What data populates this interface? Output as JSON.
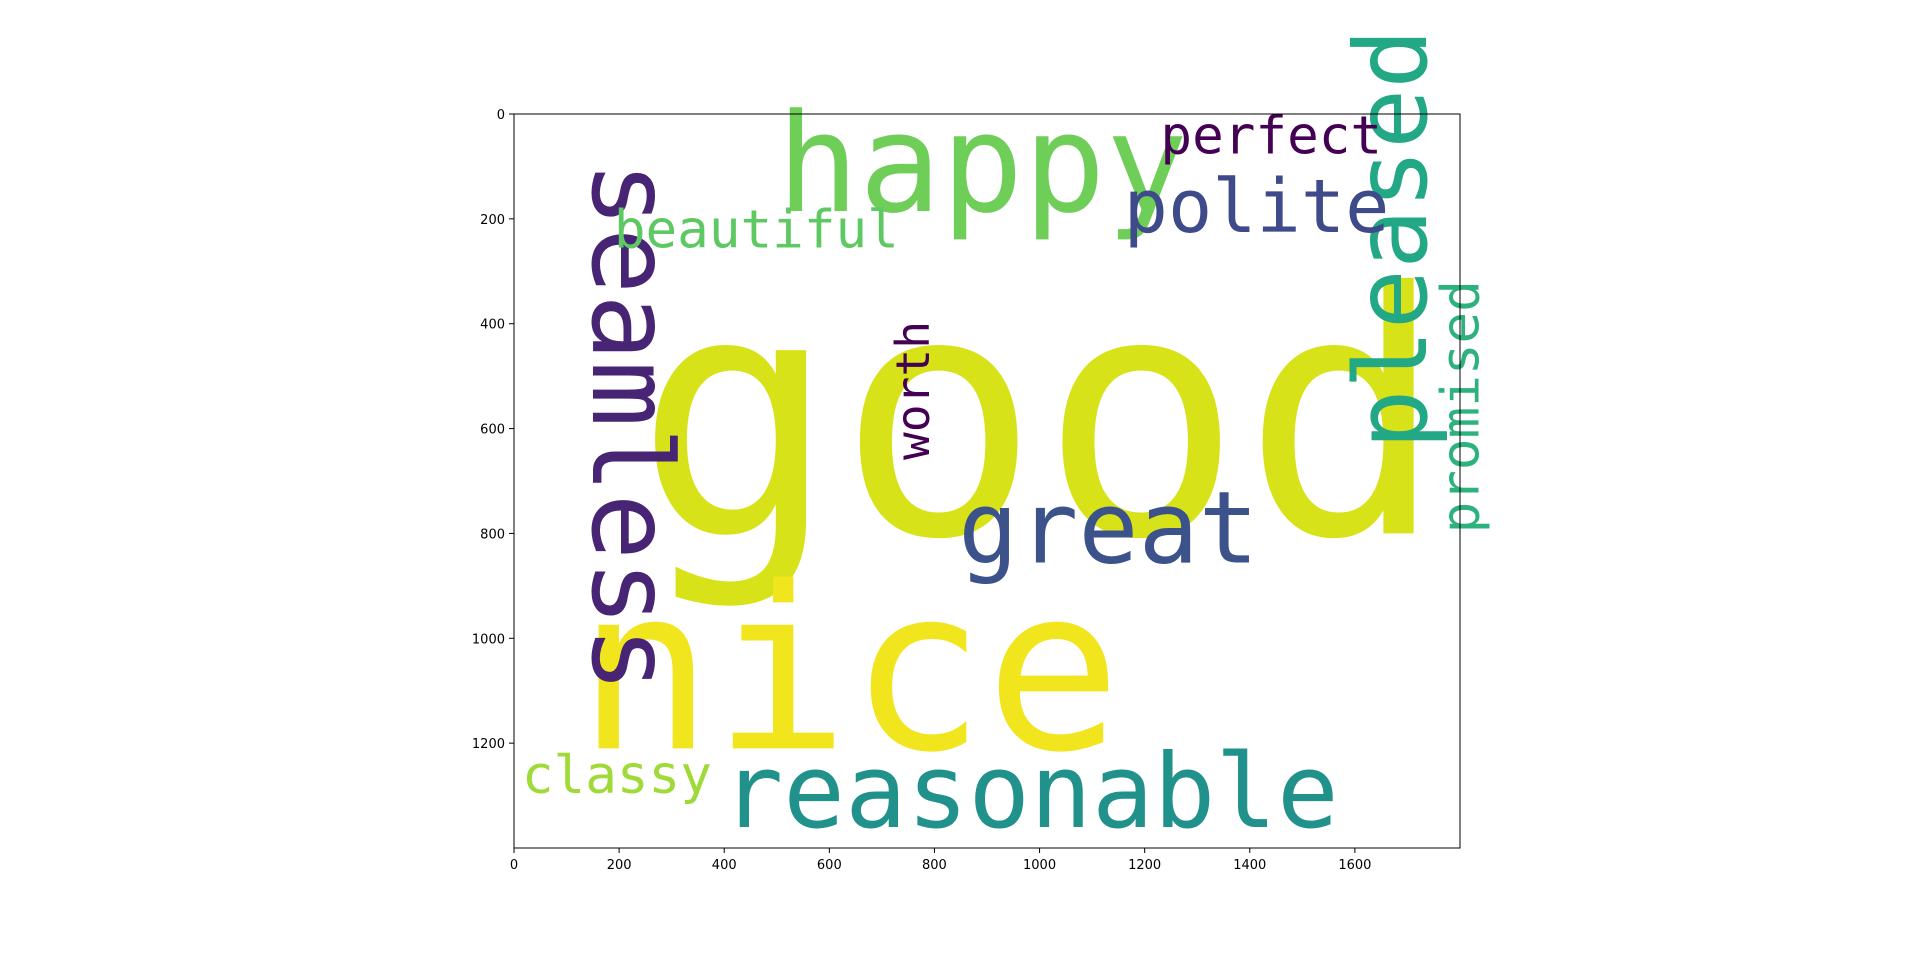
{
  "chart_data": {
    "type": "wordcloud",
    "xlim": [
      0,
      1800
    ],
    "ylim": [
      1400,
      0
    ],
    "x_ticks": [
      "0",
      "200",
      "400",
      "600",
      "800",
      "1000",
      "1200",
      "1400",
      "1600"
    ],
    "y_ticks": [
      "0",
      "200",
      "400",
      "600",
      "800",
      "1000",
      "1200"
    ],
    "grid": false,
    "words": [
      {
        "text": "good",
        "x": 230,
        "y": 800,
        "size": 640,
        "rotation": 0,
        "color": "#d8e219"
      },
      {
        "text": "nice",
        "x": 120,
        "y": 1210,
        "size": 430,
        "rotation": 0,
        "color": "#f1e51d"
      },
      {
        "text": "happy",
        "x": 500,
        "y": 185,
        "size": 260,
        "rotation": 0,
        "color": "#6ece58"
      },
      {
        "text": "seamless",
        "x": 150,
        "y": 90,
        "size": 210,
        "rotation": 90,
        "color": "#482475"
      },
      {
        "text": "great",
        "x": 845,
        "y": 855,
        "size": 190,
        "rotation": 0,
        "color": "#3b528b"
      },
      {
        "text": "reasonable",
        "x": 395,
        "y": 1360,
        "size": 195,
        "rotation": 0,
        "color": "#21918c"
      },
      {
        "text": "pleased",
        "x": 1735,
        "y": 640,
        "size": 190,
        "rotation": -90,
        "color": "#22a884"
      },
      {
        "text": "polite",
        "x": 1160,
        "y": 225,
        "size": 140,
        "rotation": 0,
        "color": "#3e4a89"
      },
      {
        "text": "perfect",
        "x": 1230,
        "y": 75,
        "size": 100,
        "rotation": 0,
        "color": "#440154"
      },
      {
        "text": "beautiful",
        "x": 190,
        "y": 255,
        "size": 100,
        "rotation": 0,
        "color": "#5ec962"
      },
      {
        "text": "worth",
        "x": 790,
        "y": 660,
        "size": 88,
        "rotation": -90,
        "color": "#440154"
      },
      {
        "text": "promised",
        "x": 1835,
        "y": 800,
        "size": 100,
        "rotation": -90,
        "color": "#2db27d"
      },
      {
        "text": "classy",
        "x": 15,
        "y": 1295,
        "size": 100,
        "rotation": 0,
        "color": "#a0da39"
      }
    ]
  }
}
